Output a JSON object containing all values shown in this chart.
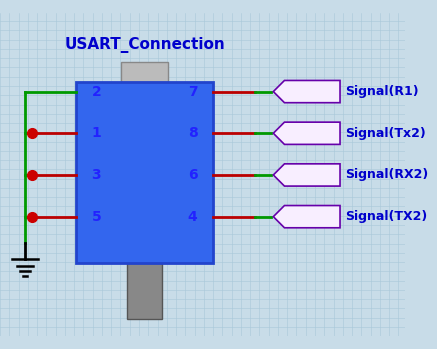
{
  "title": "USART_Connection",
  "title_color": "#0000CC",
  "bg_color": "#C8DCE8",
  "grid_color": "#A8C8D8",
  "connector_color": "#3366EE",
  "connector_border": "#2244CC",
  "plug_color": "#888888",
  "plug_top_color": "#BBBBBB",
  "pin_labels_left": [
    "2",
    "1",
    "3",
    "5"
  ],
  "pin_labels_right": [
    "7",
    "8",
    "6",
    "4"
  ],
  "signal_labels": [
    "Signal(R1)",
    "Signal(Tx2)",
    "Signal(RX2)",
    "Signal(TX2)"
  ],
  "wire_color_red": "#BB0000",
  "wire_color_green": "#009900",
  "dot_color": "#CC0000",
  "signal_box_fill": "#F8EEFF",
  "signal_border_color": "#6600AA",
  "signal_text_color": "#0000CC",
  "ground_color": "#000000",
  "pin_number_color": "#2222FF"
}
